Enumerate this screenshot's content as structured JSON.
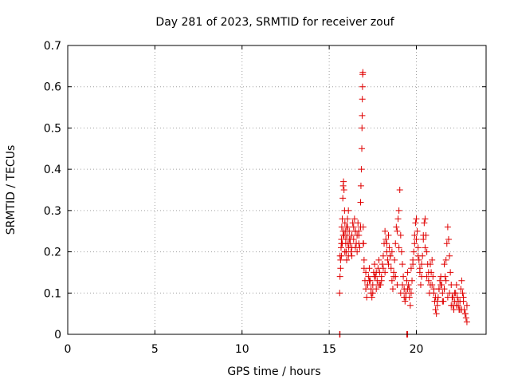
{
  "chart_data": {
    "type": "scatter",
    "title": "Day 281 of 2023, SRMTID for receiver zouf",
    "xlabel": "GPS time / hours",
    "ylabel": "SRMTID / TECUs",
    "xlim": [
      0,
      24
    ],
    "ylim": [
      0,
      0.7
    ],
    "xticks": [
      0,
      5,
      10,
      15,
      20
    ],
    "yticks": [
      0,
      0.1,
      0.2,
      0.3,
      0.4,
      0.5,
      0.6,
      0.7
    ],
    "grid": true,
    "marker": "+",
    "color": "#e00000",
    "series": [
      {
        "name": "SRMTID",
        "x": [
          15.6,
          15.62,
          15.65,
          15.68,
          15.7,
          15.72,
          15.75,
          15.78,
          15.8,
          15.82,
          15.85,
          15.88,
          15.9,
          15.92,
          15.95,
          15.98,
          16.0,
          16.02,
          16.05,
          16.08,
          16.1,
          16.12,
          16.15,
          16.2,
          16.25,
          16.3,
          16.35,
          16.4,
          16.45,
          16.5,
          16.55,
          16.6,
          16.65,
          16.7,
          16.75,
          16.8,
          16.82,
          16.85,
          16.87,
          16.88,
          16.89,
          16.9,
          16.91,
          16.92,
          16.93,
          16.95,
          16.97,
          17.0,
          17.05,
          17.1,
          17.15,
          17.2,
          17.25,
          17.3,
          17.35,
          17.4,
          17.45,
          17.5,
          17.55,
          17.6,
          17.65,
          17.7,
          17.75,
          17.8,
          17.85,
          17.9,
          17.95,
          18.0,
          18.05,
          18.1,
          18.15,
          18.2,
          18.25,
          18.3,
          18.35,
          18.4,
          18.45,
          18.5,
          18.55,
          18.6,
          18.65,
          18.7,
          18.75,
          18.8,
          18.85,
          18.9,
          18.95,
          19.0,
          19.05,
          19.1,
          19.15,
          19.2,
          19.25,
          19.3,
          19.35,
          19.4,
          19.45,
          19.5,
          19.55,
          19.6,
          19.65,
          19.7,
          19.75,
          19.8,
          19.85,
          19.9,
          19.95,
          20.0,
          20.05,
          20.1,
          20.15,
          20.2,
          20.25,
          20.3,
          20.35,
          20.4,
          20.45,
          20.5,
          20.55,
          20.6,
          20.65,
          20.7,
          20.75,
          20.8,
          20.85,
          20.9,
          20.95,
          21.0,
          21.05,
          21.1,
          21.15,
          21.2,
          21.25,
          21.3,
          21.35,
          21.4,
          21.45,
          21.5,
          21.55,
          21.6,
          21.65,
          21.7,
          21.75,
          21.8,
          21.85,
          21.9,
          21.95,
          22.0,
          22.05,
          22.1,
          22.15,
          22.2,
          22.25,
          22.3,
          22.35,
          22.4,
          22.45,
          22.5,
          22.55,
          22.6,
          22.65,
          22.7,
          22.75,
          22.8,
          22.85,
          22.9,
          15.65,
          15.7,
          15.75,
          15.8,
          15.85,
          15.9,
          15.95,
          16.0,
          16.05,
          16.1,
          16.2,
          16.3,
          16.4,
          16.5,
          16.6,
          16.7,
          16.8,
          16.95,
          17.1,
          17.3,
          17.5,
          17.7,
          17.9,
          18.1,
          18.3,
          18.5,
          18.7,
          18.9,
          19.1,
          19.3,
          19.5,
          19.7,
          19.9,
          20.1,
          20.3,
          20.5,
          20.7,
          20.9,
          21.1,
          21.3,
          21.5,
          21.7,
          21.9,
          22.1,
          22.3,
          22.5,
          22.7,
          22.9,
          15.62,
          15.7,
          15.8,
          15.9,
          16.0,
          16.15,
          16.3,
          16.5,
          16.7,
          17.0,
          17.2,
          17.4,
          17.6,
          17.8,
          18.0,
          18.2,
          18.4,
          18.6,
          18.8,
          19.0,
          19.2,
          19.4,
          19.6,
          19.8,
          20.0,
          20.2,
          20.4,
          20.6,
          20.8,
          21.0,
          21.2,
          21.4,
          21.6,
          21.8,
          22.0,
          22.2,
          22.4,
          22.6,
          22.8,
          15.6,
          15.62,
          19.45,
          19.5
        ],
        "y": [
          0.1,
          0.14,
          0.18,
          0.21,
          0.23,
          0.26,
          0.28,
          0.33,
          0.36,
          0.37,
          0.35,
          0.3,
          0.27,
          0.25,
          0.22,
          0.2,
          0.18,
          0.24,
          0.26,
          0.22,
          0.19,
          0.21,
          0.25,
          0.23,
          0.2,
          0.24,
          0.27,
          0.26,
          0.28,
          0.25,
          0.22,
          0.24,
          0.27,
          0.25,
          0.21,
          0.32,
          0.36,
          0.4,
          0.45,
          0.5,
          0.53,
          0.57,
          0.6,
          0.63,
          0.635,
          0.26,
          0.22,
          0.18,
          0.13,
          0.11,
          0.09,
          0.12,
          0.14,
          0.16,
          0.13,
          0.1,
          0.09,
          0.12,
          0.15,
          0.17,
          0.14,
          0.11,
          0.13,
          0.16,
          0.18,
          0.15,
          0.12,
          0.14,
          0.17,
          0.19,
          0.22,
          0.25,
          0.23,
          0.2,
          0.18,
          0.24,
          0.21,
          0.19,
          0.16,
          0.13,
          0.11,
          0.14,
          0.18,
          0.22,
          0.26,
          0.25,
          0.28,
          0.3,
          0.35,
          0.24,
          0.2,
          0.17,
          0.14,
          0.11,
          0.08,
          0.1,
          0.13,
          0.15,
          0.12,
          0.09,
          0.07,
          0.1,
          0.13,
          0.17,
          0.2,
          0.24,
          0.27,
          0.28,
          0.25,
          0.21,
          0.18,
          0.15,
          0.12,
          0.14,
          0.19,
          0.23,
          0.27,
          0.28,
          0.24,
          0.2,
          0.17,
          0.13,
          0.1,
          0.12,
          0.15,
          0.18,
          0.14,
          0.11,
          0.08,
          0.06,
          0.05,
          0.07,
          0.09,
          0.11,
          0.13,
          0.14,
          0.12,
          0.1,
          0.08,
          0.11,
          0.14,
          0.18,
          0.22,
          0.26,
          0.23,
          0.19,
          0.15,
          0.12,
          0.09,
          0.07,
          0.06,
          0.08,
          0.1,
          0.12,
          0.09,
          0.07,
          0.06,
          0.08,
          0.11,
          0.13,
          0.1,
          0.08,
          0.06,
          0.05,
          0.04,
          0.03,
          0.16,
          0.19,
          0.22,
          0.25,
          0.24,
          0.2,
          0.23,
          0.26,
          0.28,
          0.3,
          0.22,
          0.19,
          0.23,
          0.21,
          0.2,
          0.24,
          0.26,
          0.22,
          0.15,
          0.13,
          0.1,
          0.15,
          0.12,
          0.16,
          0.22,
          0.19,
          0.15,
          0.12,
          0.1,
          0.09,
          0.11,
          0.16,
          0.22,
          0.19,
          0.17,
          0.21,
          0.15,
          0.12,
          0.09,
          0.11,
          0.08,
          0.13,
          0.1,
          0.09,
          0.07,
          0.06,
          0.09,
          0.07,
          0.19,
          0.22,
          0.24,
          0.2,
          0.18,
          0.23,
          0.21,
          0.25,
          0.22,
          0.16,
          0.12,
          0.11,
          0.14,
          0.12,
          0.13,
          0.15,
          0.17,
          0.2,
          0.14,
          0.21,
          0.12,
          0.09,
          0.11,
          0.18,
          0.23,
          0.16,
          0.24,
          0.14,
          0.17,
          0.1,
          0.08,
          0.12,
          0.17,
          0.09,
          0.07,
          0.1,
          0.08,
          0.06,
          0.05,
          0.0,
          0.0,
          0.0,
          0.0
        ]
      }
    ]
  }
}
